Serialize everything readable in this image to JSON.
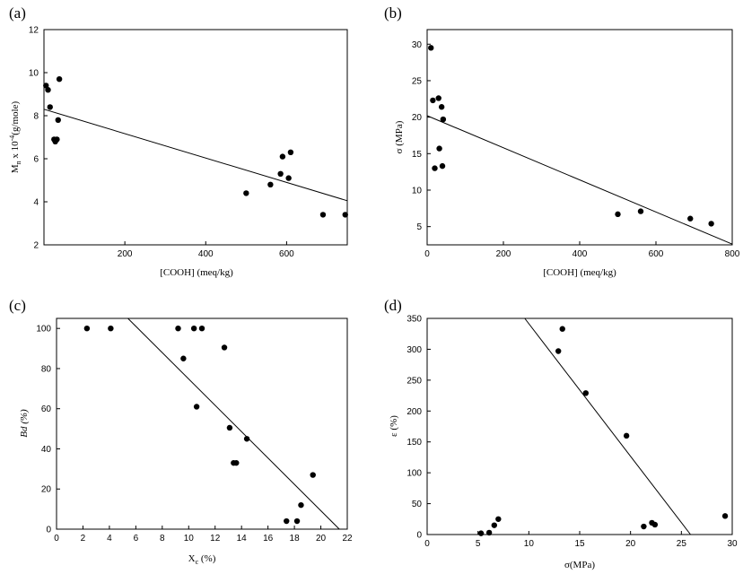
{
  "chart_data": [
    {
      "panel": "(a)",
      "type": "scatter",
      "xlabel": "[COOH] (meq/kg)",
      "ylabel_parts": [
        "M",
        "n",
        " x 10",
        "-4",
        "(g/mole)"
      ],
      "xlim": [
        0,
        750
      ],
      "ylim": [
        2,
        12
      ],
      "xticks": [
        200,
        400,
        600
      ],
      "yticks": [
        2,
        4,
        6,
        8,
        10,
        12
      ],
      "points": [
        [
          5,
          9.4
        ],
        [
          10,
          9.2
        ],
        [
          15,
          8.4
        ],
        [
          25,
          6.9
        ],
        [
          28,
          6.8
        ],
        [
          32,
          6.9
        ],
        [
          35,
          7.8
        ],
        [
          38,
          9.7
        ],
        [
          500,
          4.4
        ],
        [
          560,
          4.8
        ],
        [
          585,
          5.3
        ],
        [
          590,
          6.1
        ],
        [
          605,
          5.1
        ],
        [
          610,
          6.3
        ],
        [
          690,
          3.4
        ],
        [
          745,
          3.4
        ]
      ],
      "fit": [
        [
          0,
          8.3
        ],
        [
          750,
          4.05
        ]
      ]
    },
    {
      "panel": "(b)",
      "type": "scatter",
      "xlabel": "[COOH] (meq/kg)",
      "ylabel": "σ (MPa)",
      "xlim": [
        0,
        800
      ],
      "ylim": [
        2.5,
        32
      ],
      "xticks": [
        0,
        200,
        400,
        600,
        800
      ],
      "yticks": [
        5,
        10,
        15,
        20,
        25,
        30
      ],
      "points": [
        [
          10,
          29.5
        ],
        [
          15,
          22.3
        ],
        [
          20,
          13
        ],
        [
          30,
          22.6
        ],
        [
          32,
          15.7
        ],
        [
          38,
          21.4
        ],
        [
          40,
          13.3
        ],
        [
          42,
          19.7
        ],
        [
          500,
          6.7
        ],
        [
          560,
          7.1
        ],
        [
          690,
          6.1
        ],
        [
          745,
          5.4
        ]
      ],
      "fit": [
        [
          0,
          20.2
        ],
        [
          800,
          2.6
        ]
      ]
    },
    {
      "panel": "(c)",
      "type": "scatter",
      "xlabel_parts": [
        "X",
        "c",
        " (%)"
      ],
      "ylabel": "Bd (%)",
      "xlim": [
        0,
        22
      ],
      "ylim": [
        0,
        105
      ],
      "xticks": [
        0,
        2,
        4,
        6,
        8,
        10,
        12,
        14,
        16,
        18,
        20,
        22
      ],
      "yticks": [
        0,
        20,
        40,
        60,
        80,
        100
      ],
      "points": [
        [
          2.3,
          100
        ],
        [
          4.1,
          100
        ],
        [
          9.2,
          100
        ],
        [
          9.6,
          85
        ],
        [
          10.4,
          100
        ],
        [
          10.6,
          61
        ],
        [
          11,
          100
        ],
        [
          12.7,
          90.5
        ],
        [
          13.1,
          50.5
        ],
        [
          13.4,
          33
        ],
        [
          13.6,
          33
        ],
        [
          14.4,
          45
        ],
        [
          17.4,
          4
        ],
        [
          18.2,
          4
        ],
        [
          18.5,
          12
        ],
        [
          19.4,
          27
        ]
      ],
      "fit": [
        [
          5.4,
          105
        ],
        [
          21.4,
          0
        ]
      ]
    },
    {
      "panel": "(d)",
      "type": "scatter",
      "xlabel": "σ(MPa)",
      "ylabel": "ε (%)",
      "xlim": [
        0,
        30
      ],
      "ylim": [
        0,
        350
      ],
      "xticks": [
        0,
        5,
        10,
        15,
        20,
        25,
        30
      ],
      "yticks": [
        0,
        50,
        100,
        150,
        200,
        250,
        300,
        350
      ],
      "points": [
        [
          5.3,
          2
        ],
        [
          6.1,
          3
        ],
        [
          6.6,
          15
        ],
        [
          7,
          25
        ],
        [
          12.9,
          297
        ],
        [
          13.3,
          333
        ],
        [
          15.6,
          229
        ],
        [
          19.6,
          160
        ],
        [
          21.3,
          13
        ],
        [
          22.1,
          19
        ],
        [
          22.4,
          16
        ],
        [
          29.3,
          30
        ]
      ],
      "fit": [
        [
          9.6,
          350
        ],
        [
          25.9,
          0
        ]
      ]
    }
  ]
}
